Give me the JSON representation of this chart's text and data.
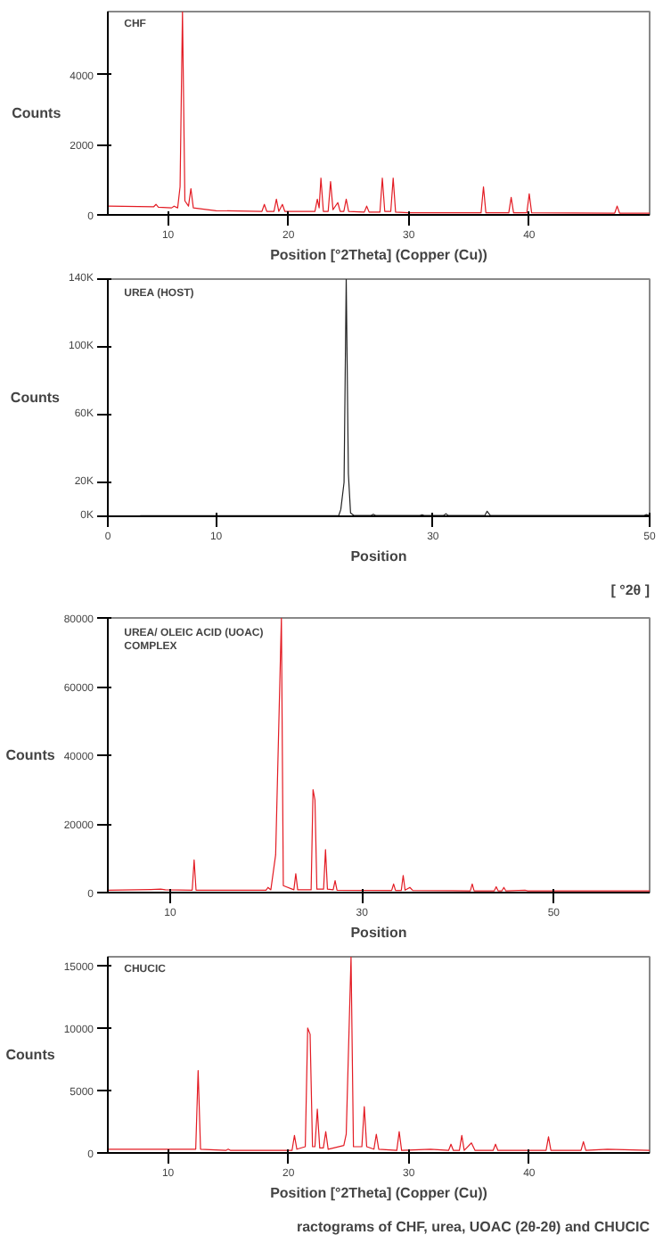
{
  "chart_data": [
    {
      "type": "line",
      "title": "CHF",
      "ylabel": "Counts",
      "xlabel": "Position [°2Theta] (Copper (Cu))",
      "xlim": [
        5,
        50
      ],
      "ylim": [
        0,
        5800
      ],
      "xticks": [
        10,
        20,
        30,
        40
      ],
      "yticks": [
        0,
        2000,
        4000
      ],
      "grid": false,
      "series": [
        {
          "color": "#e31b23",
          "x": [
            5,
            8.8,
            9,
            9.2,
            10.3,
            10.5,
            10.8,
            11.0,
            11.2,
            11.4,
            11.7,
            11.9,
            12.1,
            14,
            17.8,
            18,
            18.2,
            18.8,
            19,
            19.2,
            19.5,
            19.7,
            22.2,
            22.4,
            22.55,
            22.7,
            22.9,
            23.3,
            23.5,
            23.7,
            24.1,
            24.3,
            24.6,
            24.8,
            25,
            26.3,
            26.5,
            26.7,
            27.6,
            27.8,
            28,
            28.5,
            28.7,
            28.9,
            30,
            36,
            36.2,
            36.4,
            38.3,
            38.5,
            38.7,
            39.8,
            40,
            40.2,
            47.1,
            47.3,
            47.5,
            50
          ],
          "values": [
            250,
            230,
            300,
            220,
            200,
            250,
            200,
            800,
            5800,
            400,
            250,
            750,
            200,
            120,
            100,
            300,
            100,
            100,
            450,
            100,
            300,
            100,
            100,
            450,
            200,
            1050,
            100,
            100,
            950,
            150,
            350,
            100,
            100,
            450,
            100,
            80,
            250,
            80,
            80,
            1050,
            100,
            100,
            1050,
            80,
            60,
            60,
            800,
            60,
            60,
            500,
            60,
            60,
            600,
            60,
            50,
            250,
            50,
            50
          ]
        }
      ]
    },
    {
      "type": "line",
      "title": "UREA (HOST)",
      "ylabel": "Counts",
      "xlabel": "Position",
      "xlim": [
        0,
        50
      ],
      "ylim": [
        0,
        140000
      ],
      "xticks": [
        0,
        10,
        30,
        50
      ],
      "annotations": [
        "[ °2θ ]"
      ],
      "yticks": [
        {
          "value": 0,
          "label": "0K"
        },
        {
          "value": 20000,
          "label": "20K"
        },
        {
          "value": 60000,
          "label": "60K"
        },
        {
          "value": 100000,
          "label": "100K"
        },
        {
          "value": 140000,
          "label": "140K"
        }
      ],
      "grid": false,
      "series": [
        {
          "color": "#222222",
          "x": [
            3,
            21.3,
            21.5,
            21.8,
            22.0,
            22.2,
            22.4,
            22.7,
            24.3,
            24.5,
            24.7,
            28.8,
            29,
            29.2,
            31,
            31.2,
            31.4,
            34.8,
            35,
            35.3,
            49.5,
            49.7,
            50
          ],
          "values": [
            300,
            300,
            4000,
            20000,
            140000,
            25000,
            2000,
            500,
            500,
            1200,
            500,
            500,
            900,
            500,
            500,
            1500,
            500,
            500,
            3000,
            500,
            500,
            1000,
            500
          ]
        }
      ]
    },
    {
      "type": "line",
      "title": "UREA/ OLEIC ACID (UOAC)\nCOMPLEX",
      "ylabel": "Counts",
      "xlabel": "Position",
      "xlim": [
        3.5,
        60
      ],
      "ylim": [
        0,
        80000
      ],
      "xticks": [
        10,
        30,
        50
      ],
      "yticks": [
        0,
        20000,
        40000,
        60000,
        80000
      ],
      "grid": false,
      "series": [
        {
          "color": "#e31b23",
          "x": [
            3.5,
            8,
            9,
            9.5,
            12.3,
            12.5,
            12.7,
            20,
            20.2,
            20.5,
            21.0,
            21.6,
            21.8,
            22.9,
            23.1,
            23.3,
            24.7,
            24.9,
            25.1,
            25.3,
            26.0,
            26.2,
            26.4,
            27.0,
            27.2,
            27.4,
            33.1,
            33.3,
            33.5,
            34.1,
            34.3,
            34.5,
            35,
            35.3,
            41.3,
            41.5,
            41.7,
            43.8,
            44,
            44.2,
            44.6,
            44.8,
            45,
            47,
            47.3,
            60
          ],
          "values": [
            700,
            900,
            1000,
            800,
            700,
            9500,
            700,
            700,
            1500,
            800,
            11000,
            80000,
            2000,
            800,
            5500,
            800,
            800,
            30000,
            27000,
            1000,
            1000,
            12500,
            1000,
            800,
            3500,
            700,
            600,
            2500,
            600,
            600,
            5000,
            700,
            1500,
            600,
            500,
            2500,
            500,
            500,
            1700,
            500,
            500,
            1500,
            500,
            700,
            500,
            500
          ]
        }
      ]
    },
    {
      "type": "line",
      "title": "CHUCIC",
      "ylabel": "Counts",
      "xlabel": "Position [°2Theta] (Copper (Cu))",
      "xlim": [
        5,
        50
      ],
      "ylim": [
        0,
        15700
      ],
      "xticks": [
        10,
        20,
        30,
        40
      ],
      "yticks": [
        0,
        5000,
        10000,
        15000
      ],
      "grid": false,
      "annotations": [
        "ractograms of CHF, urea, UOAC (2θ-2θ) and CHUCIC"
      ],
      "series": [
        {
          "color": "#e31b23",
          "x": [
            5,
            12.3,
            12.5,
            12.7,
            14.8,
            15,
            15.2,
            20.3,
            20.5,
            20.7,
            21.4,
            21.6,
            21.8,
            22.0,
            22.2,
            22.4,
            22.6,
            22.9,
            23.1,
            23.3,
            24.6,
            24.8,
            25.2,
            25.4,
            26.1,
            26.3,
            26.5,
            27.1,
            27.3,
            27.5,
            29,
            29.2,
            29.4,
            31.8,
            33.3,
            33.5,
            33.7,
            34.2,
            34.4,
            34.6,
            35.2,
            35.5,
            37,
            37.2,
            37.4,
            41.4,
            41.6,
            41.8,
            44.3,
            44.5,
            44.7,
            46.5,
            50
          ],
          "values": [
            300,
            300,
            6600,
            300,
            200,
            300,
            200,
            200,
            1400,
            300,
            500,
            10000,
            9500,
            500,
            500,
            3500,
            400,
            400,
            1700,
            300,
            600,
            1500,
            15700,
            500,
            500,
            3700,
            500,
            300,
            1500,
            300,
            200,
            1700,
            200,
            300,
            200,
            700,
            200,
            200,
            1400,
            200,
            800,
            200,
            200,
            700,
            200,
            200,
            1300,
            200,
            200,
            900,
            200,
            300,
            200
          ]
        }
      ]
    }
  ]
}
